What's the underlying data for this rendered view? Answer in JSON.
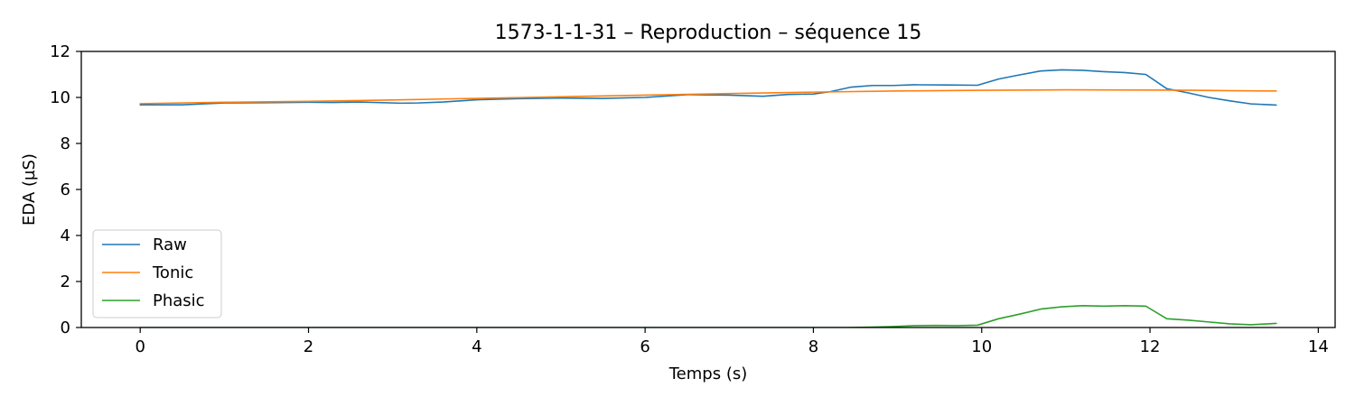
{
  "chart_data": {
    "type": "line",
    "title": "1573-1-1-31 – Reproduction – séquence 15",
    "xlabel": "Temps (s)",
    "ylabel": "EDA (µS)",
    "xlim": [
      -0.7,
      14.2
    ],
    "ylim": [
      0,
      12
    ],
    "xticks": [
      0,
      2,
      4,
      6,
      8,
      10,
      12,
      14
    ],
    "yticks": [
      0,
      2,
      4,
      6,
      8,
      10,
      12
    ],
    "grid": false,
    "legend_position": "lower-left",
    "series": [
      {
        "name": "Raw",
        "color": "#1f77b4",
        "x": [
          0.0,
          0.5,
          1.0,
          1.5,
          2.0,
          2.3,
          2.6,
          3.1,
          3.3,
          3.6,
          4.0,
          4.5,
          5.0,
          5.5,
          6.0,
          6.5,
          7.0,
          7.4,
          7.7,
          8.0,
          8.2,
          8.45,
          8.7,
          8.95,
          9.2,
          9.6,
          9.95,
          10.2,
          10.45,
          10.7,
          10.95,
          11.2,
          11.45,
          11.7,
          11.95,
          12.2,
          12.45,
          12.7,
          12.95,
          13.2,
          13.5
        ],
        "y": [
          9.68,
          9.68,
          9.76,
          9.77,
          9.79,
          9.78,
          9.8,
          9.75,
          9.76,
          9.8,
          9.9,
          9.95,
          9.97,
          9.96,
          10.0,
          10.12,
          10.1,
          10.05,
          10.13,
          10.15,
          10.25,
          10.45,
          10.52,
          10.52,
          10.55,
          10.54,
          10.53,
          10.8,
          10.98,
          11.15,
          11.2,
          11.18,
          11.12,
          11.08,
          11.0,
          10.38,
          10.2,
          10.0,
          9.85,
          9.72,
          9.67
        ]
      },
      {
        "name": "Tonic",
        "color": "#ff7f0e",
        "x": [
          0.0,
          1.0,
          2.0,
          3.0,
          4.0,
          5.0,
          6.0,
          7.0,
          8.0,
          9.0,
          10.0,
          11.0,
          12.0,
          12.5,
          13.0,
          13.5
        ],
        "y": [
          9.73,
          9.79,
          9.83,
          9.89,
          9.96,
          10.03,
          10.1,
          10.17,
          10.23,
          10.28,
          10.31,
          10.33,
          10.32,
          10.31,
          10.29,
          10.28
        ]
      },
      {
        "name": "Phasic",
        "color": "#2ca02c",
        "x": [
          0.0,
          8.4,
          8.7,
          8.95,
          9.2,
          9.45,
          9.7,
          9.95,
          10.2,
          10.45,
          10.7,
          10.95,
          11.2,
          11.45,
          11.7,
          11.95,
          12.2,
          12.45,
          12.7,
          12.95,
          13.2,
          13.5
        ],
        "y": [
          0.0,
          0.0,
          0.02,
          0.04,
          0.08,
          0.09,
          0.08,
          0.1,
          0.38,
          0.58,
          0.8,
          0.9,
          0.95,
          0.93,
          0.95,
          0.93,
          0.38,
          0.32,
          0.24,
          0.16,
          0.12,
          0.18
        ]
      }
    ]
  }
}
